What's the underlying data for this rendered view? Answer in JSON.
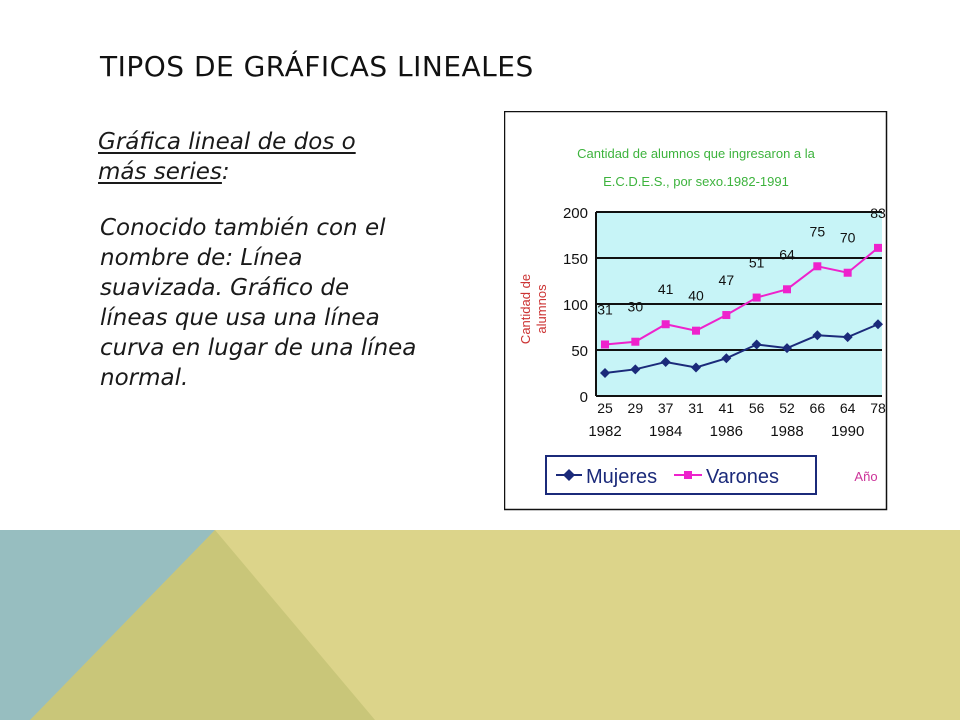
{
  "slide": {
    "title": "TIPOS DE GRÁFICAS LINEALES",
    "subtitle_part1": "Gráfica lineal de dos o más series",
    "subtitle_part2": ":",
    "body": "Conocido también con el nombre de: Línea suavizada. Gráfico de líneas que usa una línea curva en lugar de una línea normal."
  },
  "colors": {
    "deco_blue": "#97bec0",
    "deco_olive": "#c9c679",
    "deco_yellow": "#dcd48a",
    "plot_bg": "#c7f4f7",
    "title_green": "#3db33d",
    "axis_label_red": "#cc3333",
    "mujeres": "#1b2a7a",
    "varones": "#ee22cc",
    "ano_magenta": "#cc3399"
  },
  "chart_data": {
    "type": "line",
    "title_line1": "Cantidad de alumnos que ingresaron a la",
    "title_line2": "E.C.D.E.S., por sexo.1982-1991",
    "ylabel_line1": "Cantidad de",
    "ylabel_line2": "alumnos",
    "xlabel": "Año",
    "x": [
      1982,
      1983,
      1984,
      1985,
      1986,
      1987,
      1988,
      1989,
      1990,
      1991
    ],
    "x_tick_labels": [
      "1982",
      "1984",
      "1986",
      "1988",
      "1990"
    ],
    "x_tick_values": [
      1982,
      1984,
      1986,
      1988,
      1990
    ],
    "y_ticks": [
      0,
      50,
      100,
      150,
      200
    ],
    "ylim": [
      0,
      200
    ],
    "grid": true,
    "legend": "bottom",
    "series": [
      {
        "name": "Mujeres",
        "values": [
          25,
          29,
          37,
          31,
          41,
          56,
          52,
          66,
          64,
          78
        ],
        "labels": [
          "25",
          "29",
          "37",
          "31",
          "41",
          "56",
          "52",
          "66",
          "64",
          "78"
        ]
      },
      {
        "name": "Varones",
        "values": [
          56,
          59,
          78,
          71,
          88,
          107,
          116,
          141,
          134,
          161
        ],
        "labels": [
          "31",
          "30",
          "41",
          "40",
          "47",
          "51",
          "64",
          "75",
          "70",
          "83"
        ]
      }
    ]
  }
}
